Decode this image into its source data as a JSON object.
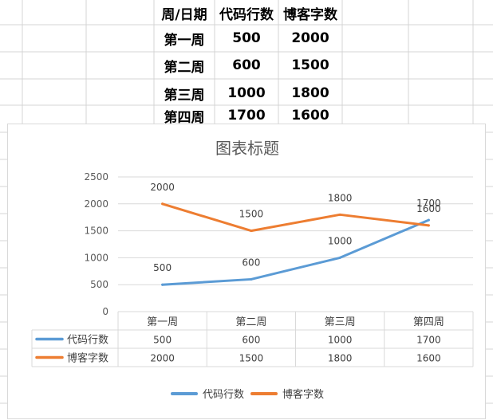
{
  "sheet": {
    "headers": [
      "周/日期",
      "代码行数",
      "博客字数"
    ],
    "rows": [
      [
        "第一周",
        "500",
        "2000"
      ],
      [
        "第二周",
        "600",
        "1500"
      ],
      [
        "第三周",
        "1000",
        "1800"
      ],
      [
        "第四周",
        "1700",
        "1600"
      ]
    ]
  },
  "chart_data": {
    "type": "line",
    "title": "图表标题",
    "categories": [
      "第一周",
      "第二周",
      "第三周",
      "第四周"
    ],
    "series": [
      {
        "name": "代码行数",
        "values": [
          500,
          600,
          1000,
          1700
        ],
        "color": "#5b9bd5"
      },
      {
        "name": "博客字数",
        "values": [
          2000,
          1500,
          1800,
          1600
        ],
        "color": "#ed7d31"
      }
    ],
    "ylim": [
      0,
      2500
    ],
    "yticks": [
      0,
      500,
      1000,
      1500,
      2000,
      2500
    ],
    "grid": true,
    "data_labels": true,
    "data_table": true,
    "legend": "bottom"
  }
}
